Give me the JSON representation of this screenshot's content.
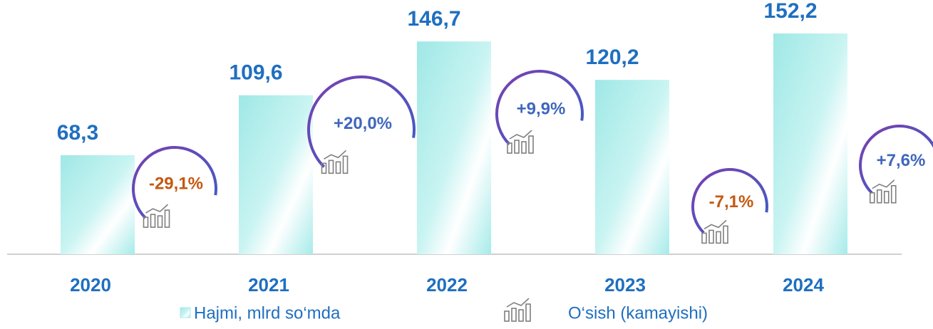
{
  "chart_data": {
    "type": "bar",
    "categories": [
      "2020",
      "2021",
      "2022",
      "2023",
      "2024"
    ],
    "series": [
      {
        "name": "Hajmi, mlrd so‘mda",
        "color": "#a6ebe9",
        "values": [
          68.3,
          109.6,
          146.7,
          120.2,
          152.2
        ],
        "value_labels": [
          "68,3",
          "109,6",
          "146,7",
          "120,2",
          "152,2"
        ]
      },
      {
        "name": "O‘sish (kamayishi)",
        "color": "#4a5fc1",
        "values": [
          -29.1,
          20.0,
          9.9,
          -7.1,
          7.6
        ],
        "value_labels": [
          "-29,1%",
          "+20,0%",
          "+9,9%",
          "-7,1%",
          "+7,6%"
        ]
      }
    ],
    "positive_color": "#3f67bd",
    "negative_color": "#c45911",
    "label_color": "#1f6fc0"
  }
}
